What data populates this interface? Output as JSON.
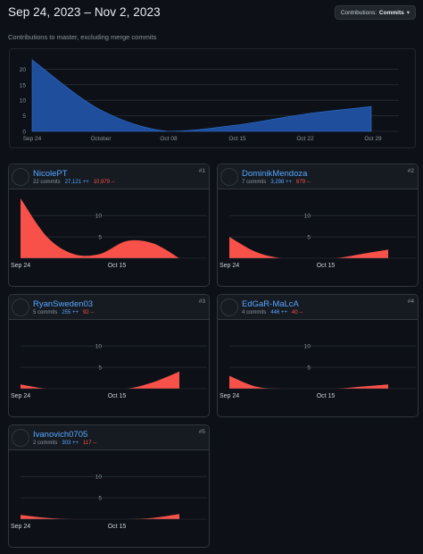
{
  "header": {
    "date_range": "Sep 24, 2023 – Nov 2, 2023",
    "dropdown_prefix": "Contributions:",
    "dropdown_value": "Commits",
    "subtitle": "Contributions to master, excluding merge commits"
  },
  "colors": {
    "background": "#0d1117",
    "main_fill": "#1f4f9c",
    "contributor_fill": "#f85149",
    "link": "#58a6ff",
    "deletions": "#f85149"
  },
  "chart_data": [
    {
      "type": "area",
      "x": [
        "Sep 24",
        "Oct 1",
        "Oct 8",
        "Oct 15",
        "Oct 22",
        "Oct 29"
      ],
      "y": [
        23,
        7,
        0,
        2,
        5.5,
        8
      ],
      "xticks": [
        "Sep 24",
        "October",
        "Oct 08",
        "Oct 15",
        "Oct 22",
        "Oct 29"
      ],
      "yticks": [
        0,
        5,
        10,
        15,
        20
      ],
      "ylim": [
        0,
        23
      ],
      "grid": true
    },
    {
      "type": "area",
      "series": [
        {
          "name": "NicolePT",
          "values": [
            14,
            5,
            1,
            1,
            4,
            3.5,
            0
          ]
        },
        {
          "name": "DominikMendoza",
          "values": [
            5,
            1.5,
            0,
            0,
            0,
            1,
            2
          ]
        },
        {
          "name": "RyanSweden03",
          "values": [
            1,
            0,
            0,
            0,
            0,
            1.5,
            4
          ]
        },
        {
          "name": "EdGaR-MaLcA",
          "values": [
            3,
            0.5,
            0,
            0,
            0,
            0.5,
            1
          ]
        },
        {
          "name": "Ivanovich0705",
          "values": [
            1,
            0.3,
            0,
            0,
            0,
            0.3,
            1.2
          ]
        }
      ],
      "xticks": [
        "Sep 24",
        "Oct 15"
      ],
      "yticks": [
        5,
        10
      ],
      "ylim": [
        0,
        14
      ]
    }
  ],
  "contributors": [
    {
      "rank": "#1",
      "name": "NicolePT",
      "commits": "22 commits",
      "additions": "27,121 ++",
      "deletions": "10,979 --"
    },
    {
      "rank": "#2",
      "name": "DominikMendoza",
      "commits": "7 commits",
      "additions": "3,298 ++",
      "deletions": "679 --"
    },
    {
      "rank": "#3",
      "name": "RyanSweden03",
      "commits": "5 commits",
      "additions": "255 ++",
      "deletions": "92 --"
    },
    {
      "rank": "#4",
      "name": "EdGaR-MaLcA",
      "commits": "4 commits",
      "additions": "446 ++",
      "deletions": "40 --"
    },
    {
      "rank": "#5",
      "name": "Ivanovich0705",
      "commits": "2 commits",
      "additions": "303 ++",
      "deletions": "117 --"
    }
  ],
  "avatars": [
    "portrait-avatar",
    "glasses-avatar",
    "photo-avatar",
    "portrait-avatar",
    "emblem-avatar"
  ]
}
